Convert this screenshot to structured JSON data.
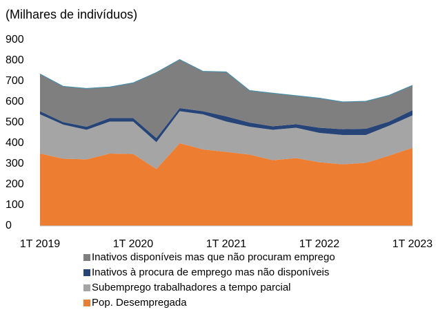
{
  "chart_data": {
    "type": "stacked_area",
    "subtitle": "(Milhares de indivíduos)",
    "categories": [
      "1T 2019",
      null,
      null,
      null,
      "1T 2020",
      null,
      null,
      null,
      "1T 2021",
      null,
      null,
      null,
      "1T 2022",
      null,
      null,
      null,
      "1T 2023"
    ],
    "series": [
      {
        "name": "Pop. Desempregada",
        "color": "#ed7d31",
        "values": [
          350,
          325,
          322,
          350,
          348,
          275,
          400,
          370,
          358,
          345,
          318,
          328,
          308,
          298,
          305,
          340,
          378
        ]
      },
      {
        "name": "Subemprego trabalhadores a tempo parcial",
        "color": "#a5a5a5",
        "values": [
          190,
          165,
          143,
          155,
          157,
          130,
          155,
          170,
          147,
          135,
          147,
          147,
          142,
          142,
          135,
          145,
          157
        ]
      },
      {
        "name": "Inativos à procura de emprego mas não disponíveis",
        "color": "#264478",
        "values": [
          15,
          12,
          15,
          17,
          17,
          20,
          15,
          15,
          25,
          20,
          17,
          17,
          25,
          28,
          30,
          20,
          25
        ]
      },
      {
        "name": "Inativos disponíveis mas que não procuram emprego",
        "color": "#7f7f7f",
        "values": [
          180,
          173,
          185,
          150,
          170,
          317,
          235,
          193,
          215,
          155,
          160,
          138,
          143,
          132,
          133,
          127,
          120
        ]
      }
    ],
    "ylim": [
      0,
      900
    ],
    "yticks": [
      0,
      100,
      200,
      300,
      400,
      500,
      600,
      700,
      800,
      900
    ]
  }
}
